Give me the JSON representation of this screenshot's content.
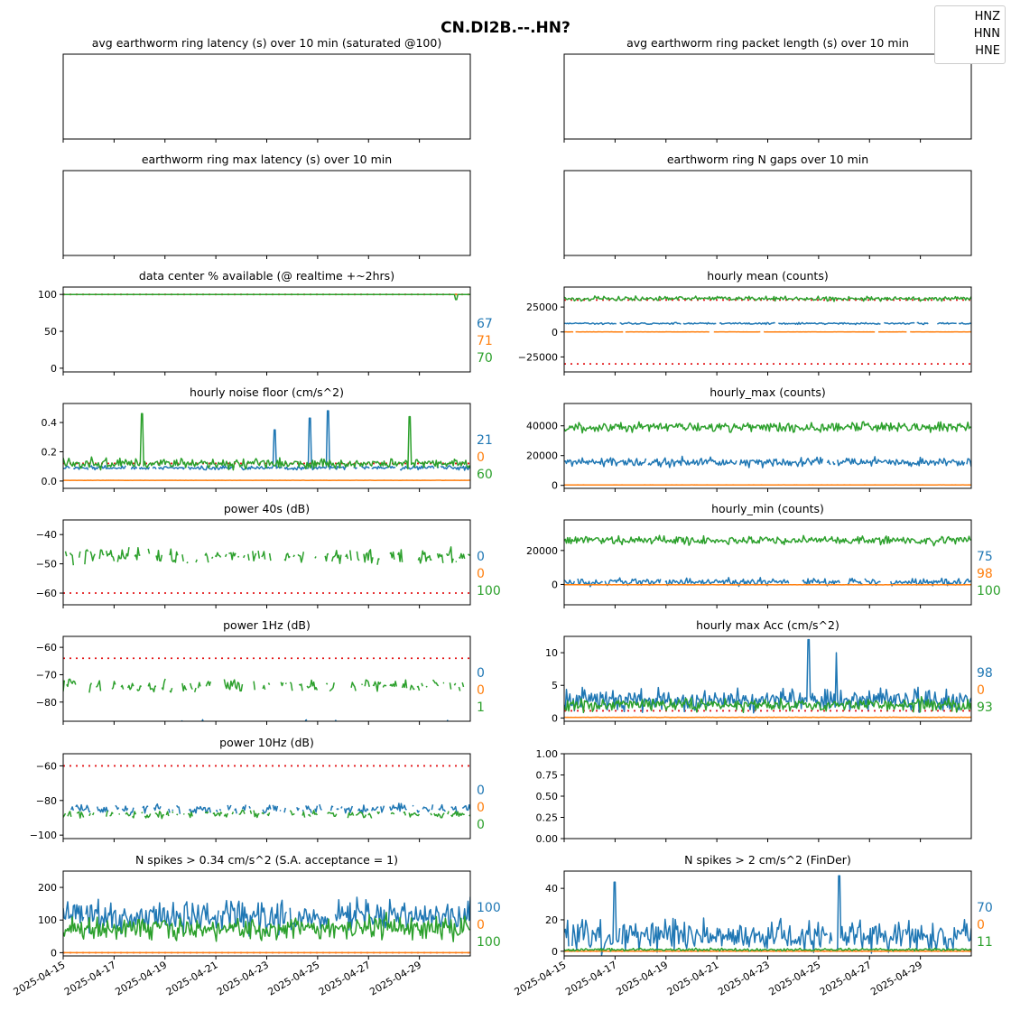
{
  "figure": {
    "title": "CN.DI2B.--.HN?"
  },
  "legend": [
    "HNZ",
    "HNN",
    "HNE"
  ],
  "colors": {
    "HNZ": "#1f77b4",
    "HNN": "#ff7f0e",
    "HNE": "#2ca02c",
    "threshold": "#e41a1c"
  },
  "x_axis": {
    "start": "2025-04-15",
    "end": "2025-05-01",
    "tick_labels": [
      "2025-04-15",
      "2025-04-17",
      "2025-04-19",
      "2025-04-21",
      "2025-04-23",
      "2025-04-25",
      "2025-04-27",
      "2025-04-29"
    ]
  },
  "chart_data": [
    {
      "id": "p1",
      "type": "line",
      "title": "avg earthworm ring latency (s)   over 10 min (saturated @100)",
      "ylim": null,
      "yticks": [],
      "series": []
    },
    {
      "id": "p2",
      "type": "line",
      "title": "avg earthworm ring packet length (s)   over 10 min",
      "ylim": null,
      "yticks": [],
      "series": []
    },
    {
      "id": "p3",
      "type": "line",
      "title": "earthworm ring max latency (s)   over 10 min",
      "ylim": null,
      "yticks": [],
      "series": []
    },
    {
      "id": "p4",
      "type": "line",
      "title": "earthworm ring N gaps   over 10 min",
      "ylim": null,
      "yticks": [],
      "series": []
    },
    {
      "id": "p5",
      "type": "line",
      "title": "data center % available (@ realtime +~2hrs)",
      "ylim": [
        -5,
        110
      ],
      "yticks": [
        0,
        50,
        100
      ],
      "ytick_labels": [
        "0",
        "50",
        "100"
      ],
      "thresholds": [
        100
      ],
      "series": [
        {
          "name": "HNZ",
          "level": 100,
          "amp": 0,
          "gaps": 0
        },
        {
          "name": "HNN",
          "level": 100,
          "amp": 0,
          "gaps": 0
        },
        {
          "name": "HNE",
          "level": 100,
          "amp": 0,
          "gaps": 0,
          "dip": {
            "t": 15.45,
            "value": 93
          }
        }
      ],
      "side_values": [
        "67",
        "71",
        "70"
      ]
    },
    {
      "id": "p6",
      "type": "line",
      "title": "hourly mean (counts)",
      "ylim": [
        -40000,
        45000
      ],
      "yticks": [
        -25000,
        0,
        25000
      ],
      "ytick_labels": [
        "−25000",
        "0",
        "25000"
      ],
      "thresholds": [
        32000,
        -32000
      ],
      "series": [
        {
          "name": "HNZ",
          "level": 8500,
          "amp": 1200,
          "gaps": 0.02
        },
        {
          "name": "HNN",
          "level": 100,
          "amp": 150,
          "gaps": 0.02
        },
        {
          "name": "HNE",
          "level": 33500,
          "amp": 3500,
          "gaps": 0
        }
      ],
      "side_values": []
    },
    {
      "id": "p7",
      "type": "line",
      "title": "hourly noise floor (cm/s^2)",
      "ylim": [
        -0.05,
        0.53
      ],
      "yticks": [
        0.0,
        0.2,
        0.4
      ],
      "ytick_labels": [
        "0.0",
        "0.2",
        "0.4"
      ],
      "thresholds": [
        0.12
      ],
      "series": [
        {
          "name": "HNZ",
          "level": 0.09,
          "amp": 0.02,
          "gaps": 0.05,
          "spikes": [
            {
              "t": 8.3,
              "value": 0.35
            },
            {
              "t": 9.7,
              "value": 0.43
            },
            {
              "t": 10.4,
              "value": 0.48
            }
          ]
        },
        {
          "name": "HNN",
          "level": 0.005,
          "amp": 0.001,
          "gaps": 0
        },
        {
          "name": "HNE",
          "level": 0.12,
          "amp": 0.05,
          "gaps": 0,
          "spikes": [
            {
              "t": 3.1,
              "value": 0.46
            },
            {
              "t": 13.6,
              "value": 0.44
            }
          ]
        }
      ],
      "side_values": [
        "21",
        "0",
        "60"
      ]
    },
    {
      "id": "p8",
      "type": "line",
      "title": "hourly_max (counts)",
      "ylim": [
        -2000,
        55000
      ],
      "yticks": [
        0,
        20000,
        40000
      ],
      "ytick_labels": [
        "0",
        "20000",
        "40000"
      ],
      "thresholds": [],
      "series": [
        {
          "name": "HNZ",
          "level": 15500,
          "amp": 4500,
          "gaps": 0.01
        },
        {
          "name": "HNN",
          "level": 300,
          "amp": 100,
          "gaps": 0
        },
        {
          "name": "HNE",
          "level": 39000,
          "amp": 5000,
          "gaps": 0
        }
      ],
      "side_values": []
    },
    {
      "id": "p9",
      "type": "line",
      "title": "power 40s (dB)",
      "ylim": [
        -64,
        -35
      ],
      "yticks": [
        -60,
        -50,
        -40
      ],
      "ytick_labels": [
        "−60",
        "−50",
        "−40"
      ],
      "thresholds": [
        -60
      ],
      "series": [
        {
          "name": "HNE",
          "level": -47.5,
          "amp": 3.5,
          "gaps": 0.35
        }
      ],
      "side_values": [
        "0",
        "0",
        "100"
      ]
    },
    {
      "id": "p10",
      "type": "line",
      "title": "hourly_min (counts)",
      "ylim": [
        -12000,
        38000
      ],
      "yticks": [
        0,
        20000
      ],
      "ytick_labels": [
        "0",
        "20000"
      ],
      "thresholds": [],
      "series": [
        {
          "name": "HNZ",
          "level": 1500,
          "amp": 3000,
          "gaps": 0.02
        },
        {
          "name": "HNN",
          "level": -200,
          "amp": 150,
          "gaps": 0
        },
        {
          "name": "HNE",
          "level": 26000,
          "amp": 3500,
          "gaps": 0
        }
      ],
      "side_values": [
        "75",
        "98",
        "100"
      ]
    },
    {
      "id": "p11",
      "type": "line",
      "title": "power 1Hz (dB)",
      "ylim": [
        -87,
        -56
      ],
      "yticks": [
        -80,
        -70,
        -60
      ],
      "ytick_labels": [
        "−80",
        "−70",
        "−60"
      ],
      "thresholds": [
        -64
      ],
      "series": [
        {
          "name": "HNE",
          "level": -74,
          "amp": 3.5,
          "gaps": 0.3
        },
        {
          "name": "HNZ",
          "level": -88,
          "amp": 2,
          "gaps": 0.7
        }
      ],
      "side_values": [
        "0",
        "0",
        "1"
      ]
    },
    {
      "id": "p12",
      "type": "line",
      "title": "hourly max Acc (cm/s^2)",
      "ylim": [
        -0.5,
        12.5
      ],
      "yticks": [
        0,
        5,
        10
      ],
      "ytick_labels": [
        "0",
        "5",
        "10"
      ],
      "thresholds": [
        1.1
      ],
      "series": [
        {
          "name": "HNZ",
          "level": 2.8,
          "amp": 2.5,
          "gaps": 0,
          "spikes": [
            {
              "t": 9.6,
              "value": 12.0
            },
            {
              "t": 10.7,
              "value": 10.0
            }
          ]
        },
        {
          "name": "HNN",
          "level": 0.1,
          "amp": 0.05,
          "gaps": 0
        },
        {
          "name": "HNE",
          "level": 2.0,
          "amp": 1.4,
          "gaps": 0
        }
      ],
      "side_values": [
        "98",
        "0",
        "93"
      ]
    },
    {
      "id": "p13",
      "type": "line",
      "title": "power 10Hz (dB)",
      "ylim": [
        -102,
        -53
      ],
      "yticks": [
        -100,
        -80,
        -60
      ],
      "ytick_labels": [
        "−100",
        "−80",
        "−60"
      ],
      "thresholds": [
        -60
      ],
      "series": [
        {
          "name": "HNZ",
          "level": -85,
          "amp": 4,
          "gaps": 0.3
        },
        {
          "name": "HNE",
          "level": -88,
          "amp": 3,
          "gaps": 0.3
        }
      ],
      "side_values": [
        "0",
        "0",
        "0"
      ]
    },
    {
      "id": "p14",
      "type": "line",
      "title": "",
      "ylim": [
        0,
        1
      ],
      "yticks": [
        0.0,
        0.25,
        0.5,
        0.75,
        1.0
      ],
      "ytick_labels": [
        "0.00",
        "0.25",
        "0.50",
        "0.75",
        "1.00"
      ],
      "thresholds": [],
      "series": [],
      "side_values": []
    },
    {
      "id": "p15",
      "type": "line",
      "title": "N spikes > 0.34 cm/s^2 (S.A. acceptance = 1)",
      "ylim": [
        -10,
        250
      ],
      "yticks": [
        0,
        100,
        200
      ],
      "ytick_labels": [
        "0",
        "100",
        "200"
      ],
      "thresholds": [
        0
      ],
      "series": [
        {
          "name": "HNZ",
          "level": 110,
          "amp": 70,
          "gaps": 0.01
        },
        {
          "name": "HNN",
          "level": 0,
          "amp": 0,
          "gaps": 0
        },
        {
          "name": "HNE",
          "level": 75,
          "amp": 50,
          "gaps": 0
        }
      ],
      "side_values": [
        "100",
        "0",
        "100"
      ]
    },
    {
      "id": "p16",
      "type": "line",
      "title": "N spikes > 2 cm/s^2 (FinDer)",
      "ylim": [
        -3,
        51
      ],
      "yticks": [
        0,
        20,
        40
      ],
      "ytick_labels": [
        "0",
        "20",
        "40"
      ],
      "thresholds": [
        0
      ],
      "series": [
        {
          "name": "HNZ",
          "level": 10,
          "amp": 14,
          "gaps": 0.02,
          "spikes": [
            {
              "t": 10.8,
              "value": 48
            },
            {
              "t": 2.0,
              "value": 44
            }
          ]
        },
        {
          "name": "HNN",
          "level": 0,
          "amp": 0,
          "gaps": 0
        },
        {
          "name": "HNE",
          "level": 1,
          "amp": 1.2,
          "gaps": 0
        }
      ],
      "side_values": [
        "70",
        "0",
        "11"
      ]
    }
  ]
}
